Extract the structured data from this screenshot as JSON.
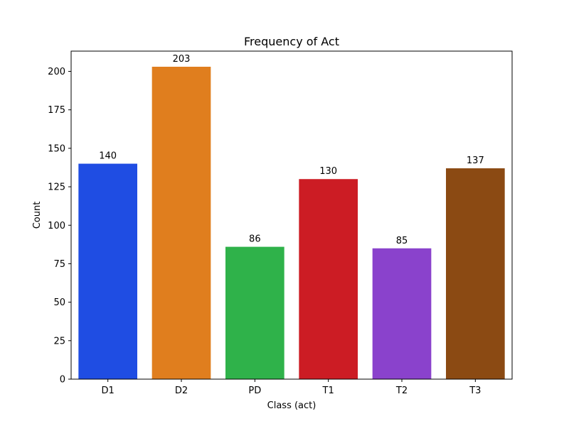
{
  "chart_data": {
    "type": "bar",
    "title": "Frequency of Act",
    "xlabel": "Class (act)",
    "ylabel": "Count",
    "categories": [
      "D1",
      "D2",
      "PD",
      "T1",
      "T2",
      "T3"
    ],
    "values": [
      140,
      203,
      86,
      130,
      85,
      137
    ],
    "data_labels": [
      "140",
      "203",
      "86",
      "130",
      "85",
      "137"
    ],
    "colors": [
      "#1f4de3",
      "#e07e1e",
      "#2fb24a",
      "#cc1c24",
      "#8a42cc",
      "#8b4a13"
    ],
    "ylim": [
      0,
      213.15
    ],
    "yticks": [
      0,
      25,
      50,
      75,
      100,
      125,
      150,
      175,
      200
    ],
    "grid": false,
    "legend": "none"
  }
}
